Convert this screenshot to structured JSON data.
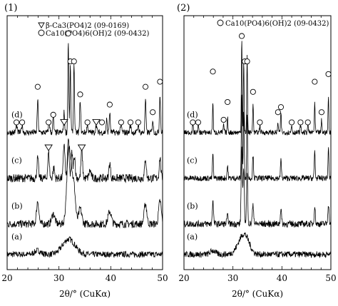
{
  "chart_data": [
    {
      "type": "line",
      "panel_label": "(1)",
      "xlabel": "2θ/° (CuKα)",
      "xlim": [
        20,
        50
      ],
      "xticks": [
        20,
        30,
        40,
        50
      ],
      "ylim": [
        0,
        100
      ],
      "legend": [
        {
          "symbol": "triangle",
          "text": "β-Ca3(PO4)2 (09-0169)"
        },
        {
          "symbol": "circle",
          "text": "Ca10(PO4)6(OH)2 (09-0432)"
        }
      ],
      "series": [
        {
          "name": "(a)",
          "baseline": 6,
          "noise": 1.2,
          "peaks": [
            [
              31.9,
              6,
              1.2
            ],
            [
              25.9,
              1.5,
              0.6
            ]
          ]
        },
        {
          "name": "(b)",
          "baseline": 18,
          "noise": 1.5,
          "peaks": [
            [
              25.9,
              9,
              0.22
            ],
            [
              28.9,
              4,
              0.3
            ],
            [
              31.8,
              24,
              0.35
            ],
            [
              32.3,
              16,
              0.3
            ],
            [
              32.9,
              14,
              0.3
            ],
            [
              34.1,
              6,
              0.3
            ],
            [
              39.8,
              5,
              0.3
            ],
            [
              46.7,
              8,
              0.25
            ],
            [
              49.5,
              9,
              0.25
            ]
          ]
        },
        {
          "name": "(c)",
          "baseline": 36,
          "noise": 1.6,
          "peaks": [
            [
              25.9,
              8,
              0.15
            ],
            [
              28.0,
              10,
              0.15
            ],
            [
              29.0,
              4,
              0.15
            ],
            [
              31.0,
              14,
              0.15
            ],
            [
              31.8,
              16,
              0.15
            ],
            [
              32.5,
              10,
              0.15
            ],
            [
              33.0,
              9,
              0.15
            ],
            [
              34.4,
              11,
              0.15
            ],
            [
              36.0,
              3,
              0.2
            ],
            [
              39.8,
              6,
              0.15
            ],
            [
              46.7,
              8,
              0.15
            ],
            [
              49.5,
              8,
              0.15
            ]
          ]
        },
        {
          "name": "(d)",
          "baseline": 54,
          "noise": 1.2,
          "peaks": [
            [
              21.8,
              3,
              0.12
            ],
            [
              22.9,
              3,
              0.12
            ],
            [
              25.9,
              13,
              0.1
            ],
            [
              28.1,
              4,
              0.12
            ],
            [
              28.9,
              6,
              0.1
            ],
            [
              31.0,
              8,
              0.1
            ],
            [
              31.8,
              36,
              0.09
            ],
            [
              32.2,
              26,
              0.09
            ],
            [
              32.9,
              28,
              0.09
            ],
            [
              34.1,
              13,
              0.1
            ],
            [
              35.5,
              3,
              0.12
            ],
            [
              37.2,
              3,
              0.12
            ],
            [
              39.2,
              5,
              0.1
            ],
            [
              39.8,
              8,
              0.1
            ],
            [
              42.0,
              3,
              0.12
            ],
            [
              43.8,
              3,
              0.12
            ],
            [
              45.3,
              3,
              0.12
            ],
            [
              46.7,
              13,
              0.1
            ],
            [
              48.1,
              5,
              0.1
            ],
            [
              49.5,
              15,
              0.1
            ]
          ]
        }
      ],
      "markers": [
        {
          "symbol": "circle",
          "x": 21.8,
          "y": 58
        },
        {
          "symbol": "circle",
          "x": 22.9,
          "y": 58
        },
        {
          "symbol": "circle",
          "x": 25.9,
          "y": 72
        },
        {
          "symbol": "circle",
          "x": 28.0,
          "y": 58
        },
        {
          "symbol": "circle",
          "x": 28.9,
          "y": 61
        },
        {
          "symbol": "triangle",
          "x": 31.0,
          "y": 58
        },
        {
          "symbol": "circle",
          "x": 31.8,
          "y": 93
        },
        {
          "symbol": "circle",
          "x": 32.2,
          "y": 82
        },
        {
          "symbol": "circle",
          "x": 32.9,
          "y": 82
        },
        {
          "symbol": "circle",
          "x": 34.1,
          "y": 69
        },
        {
          "symbol": "circle",
          "x": 35.5,
          "y": 58
        },
        {
          "symbol": "triangle",
          "x": 37.2,
          "y": 58
        },
        {
          "symbol": "circle",
          "x": 38.3,
          "y": 58
        },
        {
          "symbol": "circle",
          "x": 39.8,
          "y": 65
        },
        {
          "symbol": "circle",
          "x": 42.0,
          "y": 58
        },
        {
          "symbol": "circle",
          "x": 43.8,
          "y": 58
        },
        {
          "symbol": "circle",
          "x": 45.3,
          "y": 58
        },
        {
          "symbol": "circle",
          "x": 46.7,
          "y": 72
        },
        {
          "symbol": "circle",
          "x": 48.1,
          "y": 62
        },
        {
          "symbol": "circle",
          "x": 49.5,
          "y": 74
        },
        {
          "symbol": "triangle",
          "x": 28.0,
          "y": 48
        },
        {
          "symbol": "triangle",
          "x": 34.4,
          "y": 48
        }
      ]
    },
    {
      "type": "line",
      "panel_label": "(2)",
      "xlabel": "2θ/° (CuKα)",
      "xlim": [
        20,
        50
      ],
      "xticks": [
        20,
        30,
        40,
        50
      ],
      "ylim": [
        0,
        100
      ],
      "legend": [
        {
          "symbol": "circle",
          "text": "Ca10(PO4)6(OH)2 (09-0432)"
        }
      ],
      "series": [
        {
          "name": "(a)",
          "baseline": 6,
          "noise": 1.2,
          "peaks": [
            [
              31.9,
              6,
              1.0
            ],
            [
              32.8,
              3,
              0.8
            ],
            [
              25.9,
              1.5,
              0.5
            ]
          ]
        },
        {
          "name": "(b)",
          "baseline": 18,
          "noise": 1.3,
          "peaks": [
            [
              25.9,
              9,
              0.12
            ],
            [
              28.9,
              3,
              0.15
            ],
            [
              31.8,
              30,
              0.12
            ],
            [
              32.2,
              22,
              0.12
            ],
            [
              32.9,
              20,
              0.12
            ],
            [
              34.1,
              7,
              0.15
            ],
            [
              39.8,
              6,
              0.12
            ],
            [
              46.7,
              7,
              0.12
            ],
            [
              49.5,
              8,
              0.12
            ]
          ]
        },
        {
          "name": "(c)",
          "baseline": 36,
          "noise": 1.1,
          "peaks": [
            [
              25.9,
              10,
              0.09
            ],
            [
              28.9,
              5,
              0.1
            ],
            [
              31.8,
              34,
              0.09
            ],
            [
              32.2,
              26,
              0.09
            ],
            [
              32.9,
              26,
              0.09
            ],
            [
              34.1,
              9,
              0.1
            ],
            [
              39.8,
              8,
              0.09
            ],
            [
              46.7,
              11,
              0.09
            ],
            [
              49.5,
              12,
              0.09
            ]
          ]
        },
        {
          "name": "(d)",
          "baseline": 54,
          "noise": 1.0,
          "peaks": [
            [
              21.8,
              3,
              0.09
            ],
            [
              22.9,
              3,
              0.09
            ],
            [
              25.9,
              12,
              0.08
            ],
            [
              28.1,
              3,
              0.09
            ],
            [
              28.9,
              6,
              0.08
            ],
            [
              31.8,
              38,
              0.08
            ],
            [
              32.2,
              28,
              0.08
            ],
            [
              32.9,
              30,
              0.08
            ],
            [
              34.1,
              12,
              0.08
            ],
            [
              35.5,
              3,
              0.09
            ],
            [
              39.2,
              4,
              0.08
            ],
            [
              39.8,
              8,
              0.08
            ],
            [
              42.0,
              3,
              0.09
            ],
            [
              43.8,
              3,
              0.09
            ],
            [
              45.3,
              3,
              0.09
            ],
            [
              46.7,
              12,
              0.08
            ],
            [
              48.1,
              5,
              0.08
            ],
            [
              49.5,
              14,
              0.08
            ]
          ]
        }
      ],
      "markers": [
        {
          "symbol": "circle",
          "x": 21.8,
          "y": 58
        },
        {
          "symbol": "circle",
          "x": 22.9,
          "y": 58
        },
        {
          "symbol": "circle",
          "x": 25.9,
          "y": 78
        },
        {
          "symbol": "circle",
          "x": 28.1,
          "y": 59
        },
        {
          "symbol": "circle",
          "x": 28.9,
          "y": 66
        },
        {
          "symbol": "circle",
          "x": 31.8,
          "y": 92
        },
        {
          "symbol": "circle",
          "x": 32.4,
          "y": 82
        },
        {
          "symbol": "circle",
          "x": 32.9,
          "y": 82
        },
        {
          "symbol": "circle",
          "x": 34.1,
          "y": 70
        },
        {
          "symbol": "circle",
          "x": 35.5,
          "y": 58
        },
        {
          "symbol": "circle",
          "x": 39.2,
          "y": 62
        },
        {
          "symbol": "circle",
          "x": 39.8,
          "y": 64
        },
        {
          "symbol": "circle",
          "x": 42.0,
          "y": 58
        },
        {
          "symbol": "circle",
          "x": 43.8,
          "y": 58
        },
        {
          "symbol": "circle",
          "x": 45.3,
          "y": 58
        },
        {
          "symbol": "circle",
          "x": 46.7,
          "y": 74
        },
        {
          "symbol": "circle",
          "x": 48.1,
          "y": 62
        },
        {
          "symbol": "circle",
          "x": 49.5,
          "y": 77
        }
      ]
    }
  ]
}
